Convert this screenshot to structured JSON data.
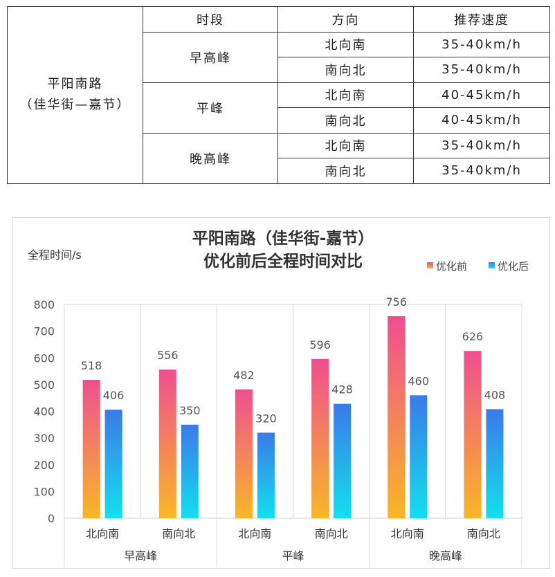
{
  "table": {
    "headers": [
      "时段",
      "方向",
      "推荐速度"
    ],
    "road_line1": "平阳南路",
    "road_line2": "（佳华街—嘉节）",
    "periods": [
      {
        "name": "早高峰",
        "rows": [
          {
            "direction": "北向南",
            "speed": "35-40km/h"
          },
          {
            "direction": "南向北",
            "speed": "35-40km/h"
          }
        ]
      },
      {
        "name": "平峰",
        "rows": [
          {
            "direction": "北向南",
            "speed": "40-45km/h"
          },
          {
            "direction": "南向北",
            "speed": "40-45km/h"
          }
        ]
      },
      {
        "name": "晚高峰",
        "rows": [
          {
            "direction": "北向南",
            "speed": "35-40km/h"
          },
          {
            "direction": "南向北",
            "speed": "35-40km/h"
          }
        ]
      }
    ]
  },
  "chart_data": {
    "type": "bar",
    "title_line1": "平阳南路（佳华街-嘉节）",
    "title_line2": "优化前后全程时间对比",
    "ylabel": "全程时间/s",
    "ylim": [
      0,
      800
    ],
    "yticks": [
      0,
      100,
      200,
      300,
      400,
      500,
      600,
      700,
      800
    ],
    "grid": "vertical group separators",
    "legend_position": "top-right",
    "groups": [
      {
        "name": "早高峰",
        "categories": [
          "北向南",
          "南向北"
        ]
      },
      {
        "name": "平峰",
        "categories": [
          "北向南",
          "南向北"
        ]
      },
      {
        "name": "晚高峰",
        "categories": [
          "北向南",
          "南向北"
        ]
      }
    ],
    "categories": [
      "北向南",
      "南向北",
      "北向南",
      "南向北",
      "北向南",
      "南向北"
    ],
    "series": [
      {
        "name": "优化前",
        "values": [
          518,
          556,
          482,
          596,
          756,
          626
        ],
        "color_top": "#ef4f91",
        "color_bottom": "#f8b726"
      },
      {
        "name": "优化后",
        "values": [
          406,
          350,
          320,
          428,
          460,
          408
        ],
        "color_top": "#3b7ae8",
        "color_bottom": "#12e0ee"
      }
    ]
  }
}
